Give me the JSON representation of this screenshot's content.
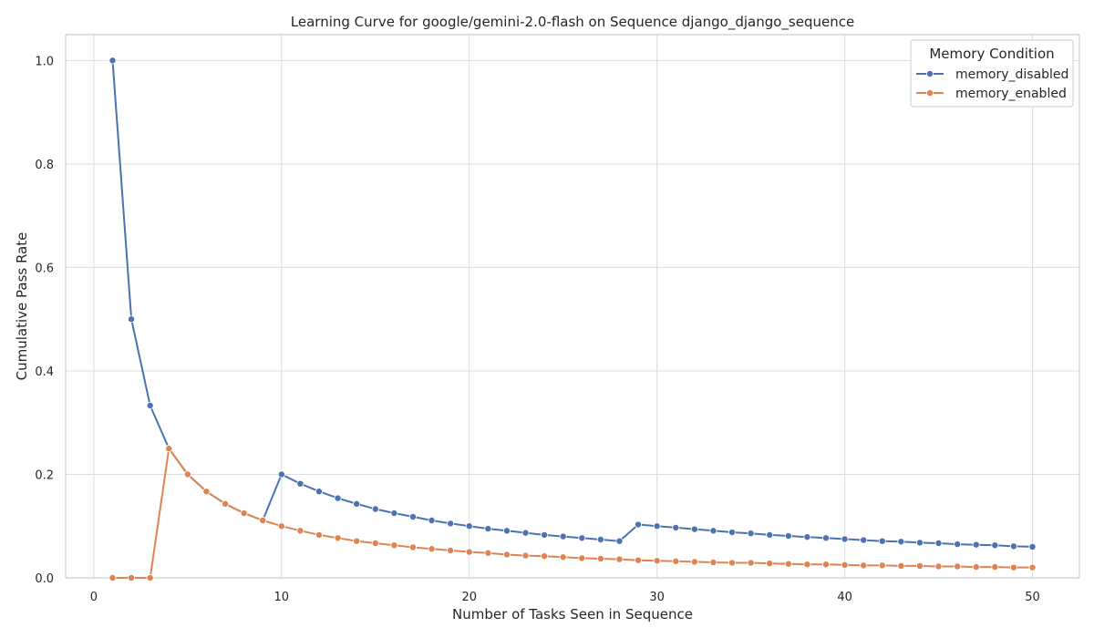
{
  "chart_data": {
    "type": "line",
    "title": "Learning Curve for google/gemini-2.0-flash on Sequence django_django_sequence",
    "xlabel": "Number of Tasks Seen in Sequence",
    "ylabel": "Cumulative Pass Rate",
    "xlim": [
      -1.5,
      52.5
    ],
    "ylim": [
      0,
      1.05
    ],
    "xticks": [
      0,
      10,
      20,
      30,
      40,
      50
    ],
    "yticks": [
      0.0,
      0.2,
      0.4,
      0.6,
      0.8,
      1.0
    ],
    "xtick_labels": [
      "0",
      "10",
      "20",
      "30",
      "40",
      "50"
    ],
    "ytick_labels": [
      "0.0",
      "0.2",
      "0.4",
      "0.6",
      "0.8",
      "1.0"
    ],
    "grid": true,
    "legend": {
      "title": "Memory Condition",
      "placement": "top-right"
    },
    "x": [
      1,
      2,
      3,
      4,
      5,
      6,
      7,
      8,
      9,
      10,
      11,
      12,
      13,
      14,
      15,
      16,
      17,
      18,
      19,
      20,
      21,
      22,
      23,
      24,
      25,
      26,
      27,
      28,
      29,
      30,
      31,
      32,
      33,
      34,
      35,
      36,
      37,
      38,
      39,
      40,
      41,
      42,
      43,
      44,
      45,
      46,
      47,
      48,
      49,
      50
    ],
    "series": [
      {
        "name": "memory_disabled",
        "color": "#4c72b0",
        "values": [
          1.0,
          0.5,
          0.333,
          0.25,
          0.2,
          0.167,
          0.143,
          0.125,
          0.111,
          0.2,
          0.182,
          0.167,
          0.154,
          0.143,
          0.133,
          0.125,
          0.118,
          0.111,
          0.105,
          0.1,
          0.095,
          0.091,
          0.087,
          0.083,
          0.08,
          0.077,
          0.074,
          0.071,
          0.103,
          0.1,
          0.097,
          0.094,
          0.091,
          0.088,
          0.086,
          0.083,
          0.081,
          0.079,
          0.077,
          0.075,
          0.073,
          0.071,
          0.07,
          0.068,
          0.067,
          0.065,
          0.064,
          0.063,
          0.061,
          0.06
        ]
      },
      {
        "name": "memory_enabled",
        "color": "#dd8452",
        "values": [
          0.0,
          0.0,
          0.0,
          0.25,
          0.2,
          0.167,
          0.143,
          0.125,
          0.111,
          0.1,
          0.091,
          0.083,
          0.077,
          0.071,
          0.067,
          0.063,
          0.059,
          0.056,
          0.053,
          0.05,
          0.048,
          0.045,
          0.043,
          0.042,
          0.04,
          0.038,
          0.037,
          0.036,
          0.034,
          0.033,
          0.032,
          0.031,
          0.03,
          0.029,
          0.029,
          0.028,
          0.027,
          0.026,
          0.026,
          0.025,
          0.024,
          0.024,
          0.023,
          0.023,
          0.022,
          0.022,
          0.021,
          0.021,
          0.02,
          0.02
        ]
      }
    ]
  }
}
